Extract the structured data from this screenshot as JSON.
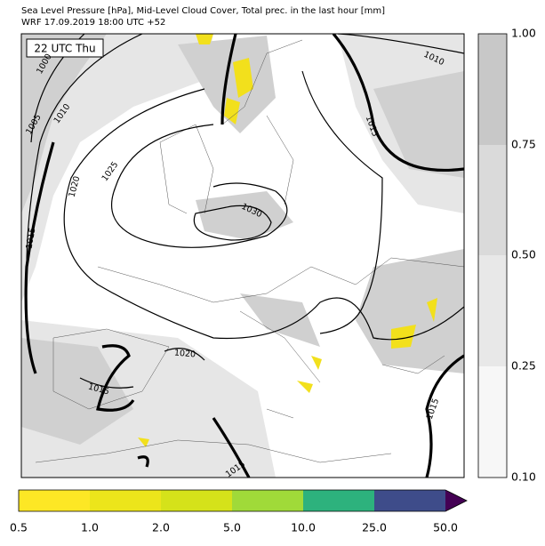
{
  "header": {
    "title": "Sea Level Pressure [hPa], Mid-Level Cloud Cover, Total prec. in the last hour [mm]",
    "subtitle": "WRF 17.09.2019 18:00 UTC +52"
  },
  "map": {
    "time_label": "22 UTC Thu",
    "contour_labels": [
      "1000",
      "1005",
      "1010",
      "1020",
      "1025",
      "1030",
      "1015",
      "1010",
      "1015",
      "1020",
      "1015",
      "1015",
      "1015"
    ]
  },
  "cloud_colorbar": {
    "ticks": [
      "0.10",
      "0.25",
      "0.50",
      "0.75",
      "1.00"
    ]
  },
  "precip_colorbar": {
    "ticks": [
      "0.5",
      "1.0",
      "2.0",
      "5.0",
      "10.0",
      "25.0",
      "50.0"
    ]
  }
}
